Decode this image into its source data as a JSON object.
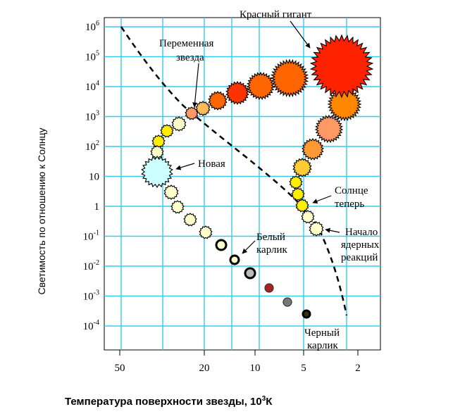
{
  "y_axis": {
    "label": "Светимость по отношению к Солнцу",
    "ticks": [
      {
        "base": "10",
        "exp": "6"
      },
      {
        "base": "10",
        "exp": "5"
      },
      {
        "base": "10",
        "exp": "4"
      },
      {
        "base": "10",
        "exp": "3"
      },
      {
        "base": "10",
        "exp": "2"
      },
      {
        "base": "10",
        "exp": ""
      },
      {
        "base": "1",
        "exp": ""
      },
      {
        "base": "10",
        "exp": "-1"
      },
      {
        "base": "10",
        "exp": "-2"
      },
      {
        "base": "10",
        "exp": "-3"
      },
      {
        "base": "10",
        "exp": "-4"
      }
    ]
  },
  "x_axis": {
    "label": "Температура поверхности звезды, 10",
    "label_sup": "3",
    "label_unit": "К",
    "ticks": [
      "50",
      "20",
      "10",
      "5",
      "2"
    ]
  },
  "labels": {
    "red_giant": "Красный гигант",
    "variable_line1": "Переменная",
    "variable_line2": "звезда",
    "nova": "Новая",
    "sun_line1": "Солнце",
    "sun_line2": "теперь",
    "start_line1": "Начало",
    "start_line2": "ядерных",
    "start_line3": "реакций",
    "white_line1": "Белый",
    "white_line2": "карлик",
    "black_line1": "Черный",
    "black_line2": "карлик"
  },
  "colors": {
    "grid": "#33ccee",
    "pale_yellow": "#ffffcc",
    "yellow": "#ffee00",
    "orange": "#ff8800",
    "red": "#ff2200",
    "nova": "#ccffff"
  }
}
